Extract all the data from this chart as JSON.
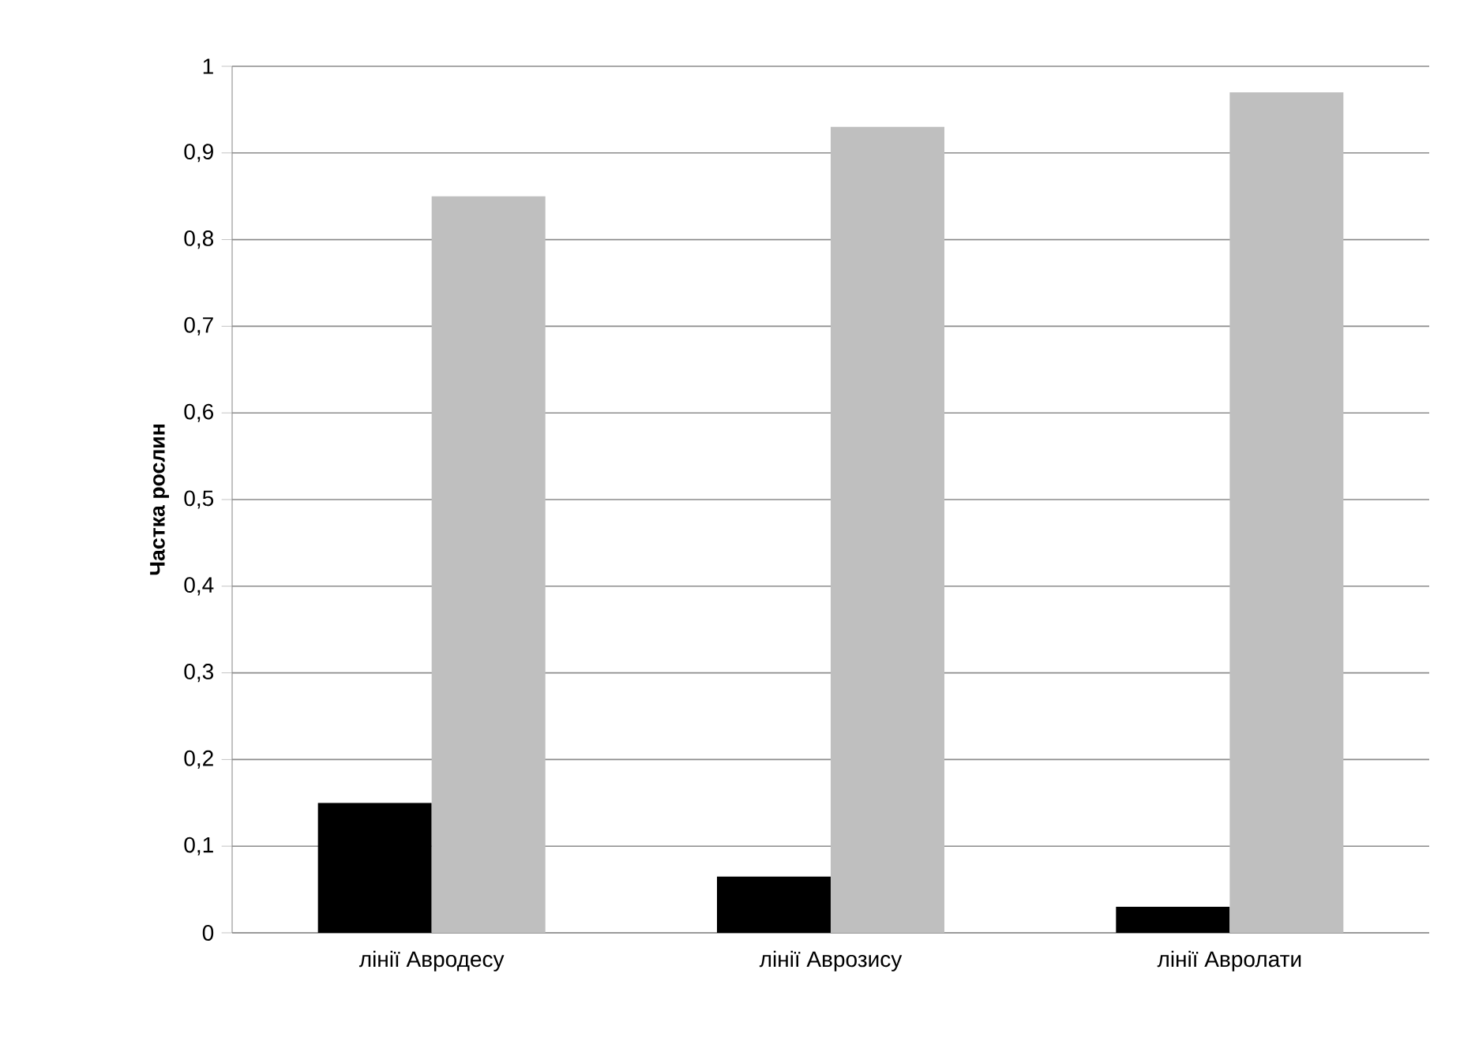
{
  "chart_data": {
    "type": "bar",
    "ylabel": "Частка  рослин",
    "categories": [
      "лінії Авродесу",
      "лінії Аврозису",
      "лінії Авролати"
    ],
    "series": [
      {
        "color": "#000000",
        "values": [
          0.15,
          0.065,
          0.03
        ]
      },
      {
        "color": "#bfbfbf",
        "values": [
          0.85,
          0.93,
          0.97
        ]
      }
    ],
    "ylim": [
      0,
      1
    ],
    "yticks": [
      {
        "value": 0,
        "label": "0"
      },
      {
        "value": 0.1,
        "label": "0,1"
      },
      {
        "value": 0.2,
        "label": "0,2"
      },
      {
        "value": 0.3,
        "label": "0,3"
      },
      {
        "value": 0.4,
        "label": "0,4"
      },
      {
        "value": 0.5,
        "label": "0,5"
      },
      {
        "value": 0.6,
        "label": "0,6"
      },
      {
        "value": 0.7,
        "label": "0,7"
      },
      {
        "value": 0.8,
        "label": "0,8"
      },
      {
        "value": 0.9,
        "label": "0,9"
      },
      {
        "value": 1,
        "label": "1"
      }
    ],
    "grid": "y"
  }
}
